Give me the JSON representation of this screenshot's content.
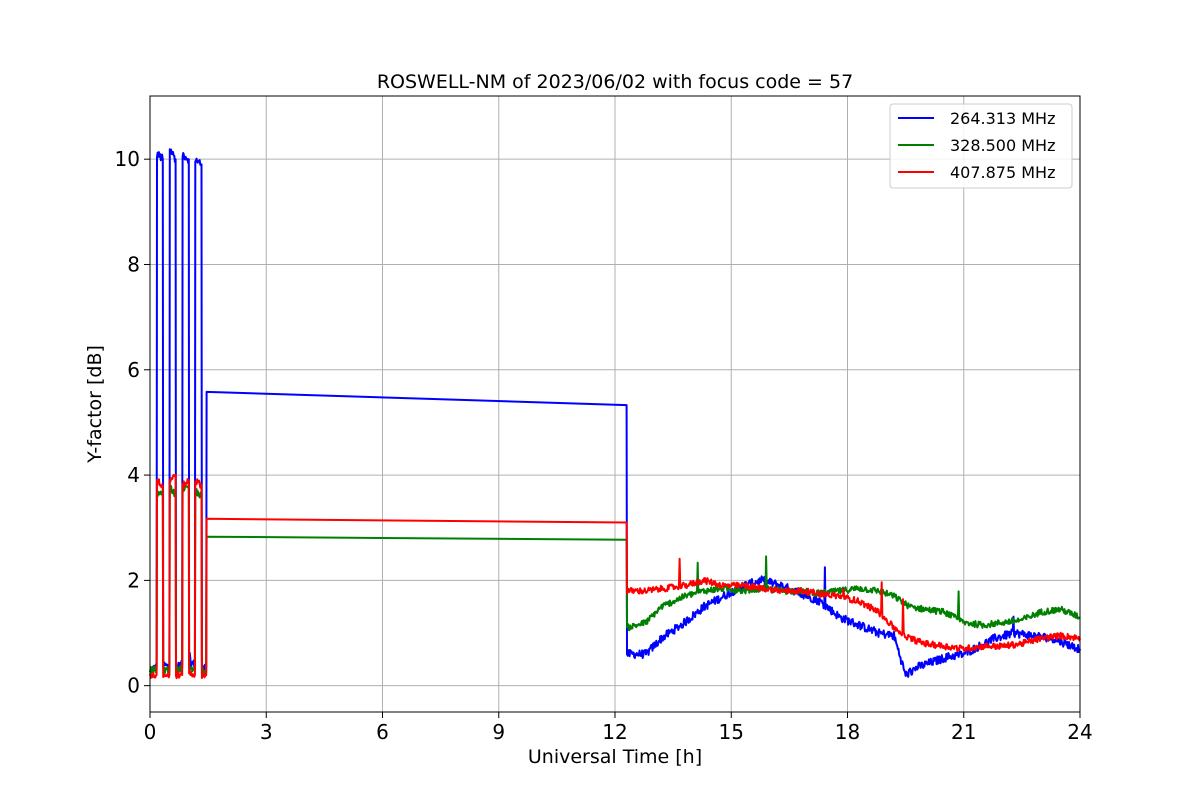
{
  "chart_data": {
    "type": "line",
    "title": "ROSWELL-NM of 2023/06/02 with focus code = 57",
    "xlabel": "Universal Time [h]",
    "ylabel": "Y-factor [dB]",
    "xlim": [
      0,
      24
    ],
    "ylim": [
      -0.5,
      11.2
    ],
    "xticks": [
      0,
      3,
      6,
      9,
      12,
      15,
      18,
      21,
      24
    ],
    "yticks": [
      0,
      2,
      4,
      6,
      8,
      10
    ],
    "xtick_labels": [
      "0",
      "3",
      "6",
      "9",
      "12",
      "15",
      "18",
      "21",
      "24"
    ],
    "ytick_labels": [
      "0",
      "2",
      "4",
      "6",
      "8",
      "10"
    ],
    "grid": true,
    "legend_position": "top-right",
    "series": [
      {
        "name": "264.313 MHz",
        "color": "#0000ff",
        "noise": 0.08,
        "x": [
          0.0,
          0.17,
          0.18,
          0.33,
          0.34,
          0.5,
          0.51,
          0.66,
          0.67,
          0.83,
          0.84,
          1.0,
          1.01,
          1.16,
          1.17,
          1.33,
          1.34,
          1.45,
          1.46,
          12.3,
          12.31,
          12.8,
          13.2,
          13.8,
          14.3,
          14.8,
          15.3,
          15.8,
          16.3,
          16.8,
          17.3,
          17.8,
          18.3,
          18.8,
          19.2,
          19.5,
          19.8,
          20.2,
          20.6,
          21.0,
          21.4,
          21.8,
          22.3,
          22.8,
          23.3,
          23.8,
          24.0
        ],
        "y": [
          0.3,
          0.35,
          10.1,
          10.0,
          0.4,
          0.35,
          10.2,
          10.0,
          0.35,
          0.4,
          10.1,
          10.0,
          0.45,
          0.4,
          10.0,
          9.9,
          0.4,
          0.35,
          5.58,
          5.33,
          0.6,
          0.6,
          0.9,
          1.2,
          1.5,
          1.7,
          1.9,
          2.0,
          1.9,
          1.75,
          1.6,
          1.3,
          1.15,
          1.0,
          0.95,
          0.2,
          0.35,
          0.45,
          0.55,
          0.6,
          0.75,
          0.9,
          1.0,
          0.95,
          0.9,
          0.75,
          0.7
        ]
      },
      {
        "name": "328.500 MHz",
        "color": "#008000",
        "noise": 0.06,
        "x": [
          0.0,
          0.17,
          0.18,
          0.33,
          0.34,
          0.5,
          0.51,
          0.66,
          0.67,
          0.83,
          0.84,
          1.0,
          1.01,
          1.16,
          1.17,
          1.33,
          1.34,
          1.45,
          1.46,
          12.3,
          12.31,
          12.8,
          13.2,
          13.8,
          14.3,
          14.8,
          15.3,
          15.8,
          16.3,
          16.8,
          17.3,
          17.8,
          18.3,
          18.8,
          19.2,
          19.6,
          20.0,
          20.5,
          21.0,
          21.5,
          22.0,
          22.5,
          23.0,
          23.5,
          24.0
        ],
        "y": [
          0.3,
          0.3,
          3.6,
          3.7,
          0.3,
          0.3,
          3.8,
          3.6,
          0.3,
          0.35,
          3.7,
          3.8,
          0.35,
          0.3,
          3.7,
          3.6,
          0.3,
          0.25,
          2.83,
          2.77,
          1.1,
          1.2,
          1.5,
          1.7,
          1.8,
          1.85,
          1.8,
          1.85,
          1.8,
          1.8,
          1.75,
          1.8,
          1.85,
          1.8,
          1.7,
          1.5,
          1.45,
          1.4,
          1.2,
          1.15,
          1.2,
          1.25,
          1.4,
          1.45,
          1.3
        ]
      },
      {
        "name": "407.875 MHz",
        "color": "#ff0000",
        "noise": 0.06,
        "x": [
          0.0,
          0.17,
          0.18,
          0.33,
          0.34,
          0.5,
          0.51,
          0.66,
          0.67,
          0.83,
          0.84,
          1.0,
          1.01,
          1.16,
          1.17,
          1.33,
          1.34,
          1.45,
          1.46,
          12.3,
          12.31,
          12.8,
          13.3,
          13.8,
          14.3,
          14.8,
          15.3,
          15.8,
          16.3,
          16.8,
          17.3,
          17.8,
          18.3,
          18.8,
          19.2,
          19.6,
          20.0,
          20.5,
          21.0,
          21.5,
          22.0,
          22.5,
          23.0,
          23.5,
          24.0
        ],
        "y": [
          0.2,
          0.2,
          3.9,
          3.8,
          0.2,
          0.2,
          3.9,
          4.0,
          0.2,
          0.2,
          3.8,
          3.9,
          0.25,
          0.2,
          3.9,
          3.8,
          0.2,
          0.2,
          3.17,
          3.1,
          1.8,
          1.8,
          1.85,
          1.9,
          2.0,
          1.9,
          1.9,
          1.85,
          1.8,
          1.8,
          1.75,
          1.7,
          1.6,
          1.4,
          1.1,
          0.9,
          0.8,
          0.75,
          0.7,
          0.75,
          0.75,
          0.8,
          0.9,
          0.95,
          0.9
        ]
      }
    ]
  }
}
